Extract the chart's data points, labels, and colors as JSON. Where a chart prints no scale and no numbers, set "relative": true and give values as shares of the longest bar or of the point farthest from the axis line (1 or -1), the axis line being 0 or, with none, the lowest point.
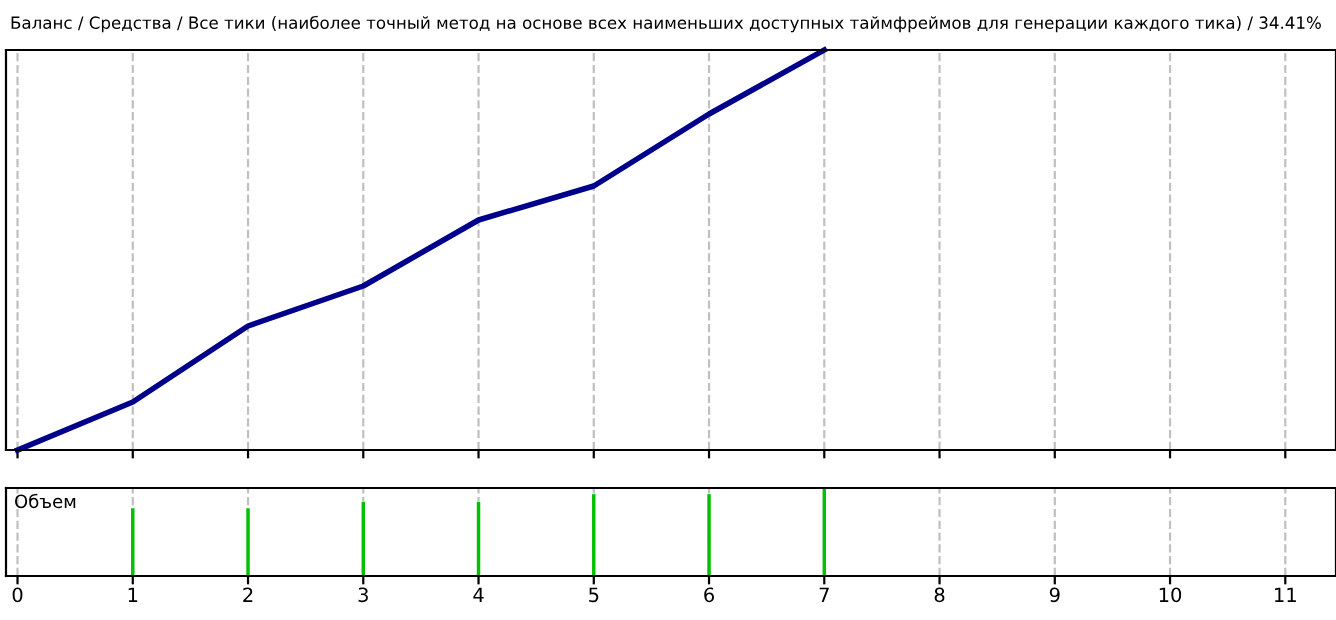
{
  "chart_data": [
    {
      "type": "line",
      "title": "Баланс / Средства / Все тики (наиболее точный метод на основе всех наименьших доступных таймфреймов для генерации каждого тика) / 34.41%",
      "relative": true,
      "x": [
        0,
        1,
        2,
        3,
        4,
        5,
        6,
        7
      ],
      "xlim": [
        -0.1,
        11.44
      ],
      "xticks": [
        0,
        1,
        2,
        3,
        4,
        5,
        6,
        7,
        8,
        9,
        10,
        11
      ],
      "tick_labels": false,
      "grid": "x",
      "series": [
        {
          "color": "#00008b",
          "values": [
            0,
            0.12,
            0.31,
            0.41,
            0.575,
            0.66,
            0.84,
            1
          ]
        }
      ]
    },
    {
      "type": "bar",
      "title": "Объем",
      "relative": true,
      "x": [
        1,
        2,
        3,
        4,
        5,
        6,
        7
      ],
      "xlim": [
        -0.1,
        11.44
      ],
      "xticks": [
        0,
        1,
        2,
        3,
        4,
        5,
        6,
        7,
        8,
        9,
        10,
        11
      ],
      "tick_labels": "x",
      "grid": "x",
      "series": [
        {
          "color": "#00c000",
          "values": [
            0.77,
            0.77,
            0.84,
            0.84,
            0.93,
            0.93,
            1
          ]
        }
      ]
    }
  ]
}
